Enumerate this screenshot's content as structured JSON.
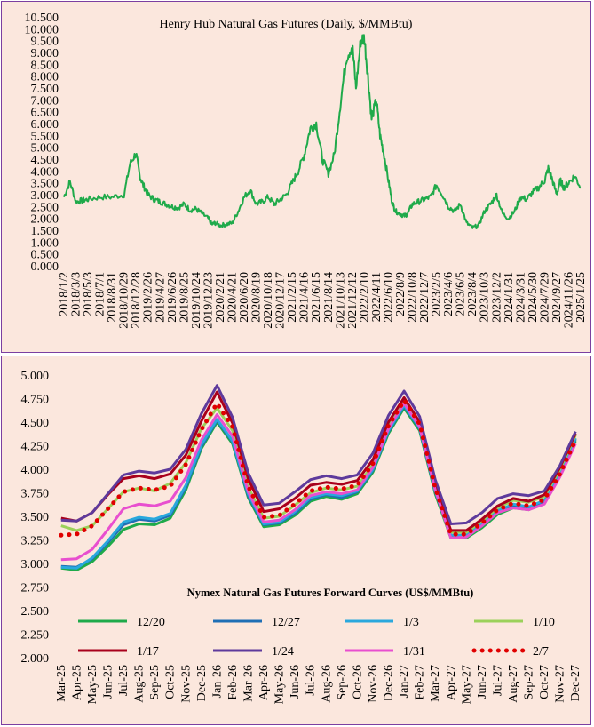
{
  "chart_data": [
    {
      "type": "line",
      "title": "Henry Hub Natural Gas Futures (Daily,  $/MMBtu)",
      "ylim": [
        0,
        10.5
      ],
      "y_ticks": [
        "0.000",
        "0.500",
        "1.000",
        "1.500",
        "2.000",
        "2.500",
        "3.000",
        "3.500",
        "4.000",
        "4.500",
        "5.000",
        "5.500",
        "6.000",
        "6.500",
        "7.000",
        "7.500",
        "8.000",
        "8.500",
        "9.000",
        "9.500",
        "10.000",
        "10.500"
      ],
      "x_tick_labels": [
        "2018/1/2",
        "2018/3/3",
        "2018/5/3",
        "2018/7/1",
        "2018/8/31",
        "2018/10/29",
        "2018/12/28",
        "2019/2/26",
        "2019/4/27",
        "2019/6/26",
        "2019/8/25",
        "2019/10/24",
        "2019/12/23",
        "2020/2/21",
        "2020/4/21",
        "2020/6/20",
        "2020/8/19",
        "2020/10/18",
        "2020/12/17",
        "2021/2/15",
        "2021/4/16",
        "2021/6/15",
        "2021/8/14",
        "2021/10/13",
        "2021/12/12",
        "2022/2/10",
        "2022/4/11",
        "2022/6/10",
        "2022/8/9",
        "2022/10/8",
        "2022/12/7",
        "2023/2/5",
        "2023/4/6",
        "2023/6/5",
        "2023/8/4",
        "2023/10/3",
        "2023/12/2",
        "2024/1/31",
        "2024/3/31",
        "2024/5/30",
        "2024/7/29",
        "2024/9/27",
        "2024/11/26",
        "2025/1/25"
      ],
      "series": [
        {
          "color": "#1faa4a",
          "x": [
            0,
            0.5,
            1,
            1.5,
            2,
            3,
            4,
            5,
            5.5,
            6,
            6.3,
            6.6,
            7,
            7.5,
            8,
            8.5,
            9,
            9.5,
            10,
            10.5,
            11,
            11.5,
            12,
            12.3,
            12.6,
            13,
            13.5,
            14,
            14.5,
            15,
            15.5,
            16,
            16.5,
            17,
            17.5,
            18,
            18.5,
            19,
            19.5,
            20,
            20.5,
            21,
            21.5,
            22,
            22.5,
            23,
            23.5,
            24,
            24.3,
            24.7,
            25,
            25.3,
            25.6,
            26,
            26.3,
            26.6,
            27,
            27.3,
            27.6,
            28,
            28.3,
            28.6,
            29,
            29.5,
            30,
            30.5,
            31,
            31.5,
            32,
            32.5,
            33,
            33.5,
            34,
            34.5,
            35,
            35.5,
            36,
            36.5,
            37,
            37.5,
            38,
            38.5,
            39,
            39.5,
            40,
            40.3,
            40.6,
            41,
            41.3,
            41.6,
            42,
            42.5,
            43
          ],
          "y": [
            2.9,
            3.55,
            2.7,
            2.75,
            2.8,
            2.9,
            2.9,
            3.0,
            4.3,
            4.75,
            3.8,
            3.4,
            3.0,
            2.8,
            2.7,
            2.6,
            2.5,
            2.45,
            2.6,
            2.35,
            2.4,
            2.2,
            2.0,
            1.75,
            1.8,
            1.7,
            1.75,
            1.8,
            2.3,
            2.9,
            3.2,
            2.6,
            2.7,
            2.9,
            2.6,
            2.8,
            3.0,
            3.5,
            4.0,
            4.7,
            5.8,
            6.0,
            4.5,
            3.9,
            4.7,
            6.8,
            8.8,
            9.3,
            7.5,
            9.5,
            9.6,
            8.0,
            6.2,
            7.0,
            5.5,
            4.8,
            3.6,
            2.7,
            2.3,
            2.2,
            2.1,
            2.2,
            2.6,
            2.7,
            2.8,
            2.9,
            3.4,
            3.0,
            2.5,
            2.3,
            2.6,
            1.8,
            1.6,
            1.7,
            2.3,
            2.6,
            3.0,
            2.2,
            2.0,
            2.3,
            2.9,
            2.8,
            3.1,
            3.3,
            3.6,
            4.1,
            3.7,
            3.0,
            3.6,
            3.3,
            3.5,
            3.8,
            3.3
          ]
        }
      ]
    },
    {
      "type": "line",
      "title": "Nymex  Natural Gas Futures Forward  Curves (US$/MMBtu)",
      "ylim": [
        2.0,
        5.0
      ],
      "y_ticks": [
        "2.000",
        "2.250",
        "2.500",
        "2.750",
        "3.000",
        "3.250",
        "3.500",
        "3.750",
        "4.000",
        "4.250",
        "4.500",
        "4.750",
        "5.000"
      ],
      "categories": [
        "Mar-25",
        "Apr-25",
        "May-25",
        "Jun-25",
        "Jul-25",
        "Aug-25",
        "Sep-25",
        "Oct-25",
        "Nov-25",
        "Dec-25",
        "Jan-26",
        "Feb-26",
        "Mar-26",
        "Apr-26",
        "May-26",
        "Jun-26",
        "Jul-26",
        "Aug-26",
        "Sep-26",
        "Oct-26",
        "Nov-26",
        "Dec-26",
        "Jan-27",
        "Feb-27",
        "Mar-27",
        "Apr-27",
        "May-27",
        "Jun-27",
        "Jul-27",
        "Aug-27",
        "Sep-27",
        "Oct-27",
        "Nov-27",
        "Dec-27"
      ],
      "series": [
        {
          "name": "12/20",
          "color": "#1faa4a",
          "values": [
            2.95,
            2.93,
            3.02,
            3.18,
            3.36,
            3.42,
            3.41,
            3.48,
            3.78,
            4.22,
            4.5,
            4.27,
            3.7,
            3.39,
            3.41,
            3.51,
            3.66,
            3.71,
            3.68,
            3.74,
            3.97,
            4.38,
            4.65,
            4.41,
            3.74,
            3.27,
            3.27,
            3.38,
            3.52,
            3.59,
            3.57,
            3.64,
            3.93,
            4.3
          ]
        },
        {
          "name": "12/27",
          "color": "#1f6fb5",
          "values": [
            2.97,
            2.96,
            3.05,
            3.22,
            3.41,
            3.47,
            3.45,
            3.51,
            3.81,
            4.24,
            4.52,
            4.29,
            3.72,
            3.41,
            3.43,
            3.53,
            3.68,
            3.73,
            3.7,
            3.76,
            3.99,
            4.4,
            4.67,
            4.43,
            3.76,
            3.29,
            3.29,
            3.4,
            3.54,
            3.61,
            3.59,
            3.66,
            3.95,
            4.32
          ]
        },
        {
          "name": "1/3",
          "color": "#2aa8dd",
          "values": [
            2.96,
            2.95,
            3.06,
            3.24,
            3.44,
            3.49,
            3.47,
            3.53,
            3.83,
            4.26,
            4.53,
            4.3,
            3.74,
            3.42,
            3.44,
            3.55,
            3.7,
            3.74,
            3.72,
            3.77,
            4.0,
            4.41,
            4.68,
            4.44,
            3.77,
            3.3,
            3.3,
            3.42,
            3.56,
            3.63,
            3.6,
            3.67,
            3.96,
            4.33
          ]
        },
        {
          "name": "1/10",
          "color": "#9bd15a",
          "values": [
            3.4,
            3.35,
            3.4,
            3.58,
            3.76,
            3.8,
            3.77,
            3.85,
            4.07,
            4.43,
            4.65,
            4.41,
            3.81,
            3.48,
            3.5,
            3.62,
            3.75,
            3.8,
            3.78,
            3.82,
            4.05,
            4.45,
            4.72,
            4.47,
            3.81,
            3.33,
            3.33,
            3.45,
            3.59,
            3.67,
            3.65,
            3.71,
            4.0,
            4.36
          ]
        },
        {
          "name": "1/17",
          "color": "#a8001c",
          "values": [
            3.48,
            3.45,
            3.54,
            3.73,
            3.9,
            3.93,
            3.9,
            3.95,
            4.15,
            4.51,
            4.82,
            4.49,
            3.9,
            3.55,
            3.58,
            3.69,
            3.83,
            3.86,
            3.84,
            3.88,
            4.1,
            4.5,
            4.76,
            4.5,
            3.83,
            3.35,
            3.35,
            3.47,
            3.61,
            3.69,
            3.66,
            3.73,
            4.02,
            4.38
          ]
        },
        {
          "name": "1/24",
          "color": "#5e3a9c",
          "values": [
            3.46,
            3.45,
            3.54,
            3.74,
            3.94,
            3.98,
            3.96,
            4.0,
            4.21,
            4.59,
            4.89,
            4.55,
            3.96,
            3.62,
            3.64,
            3.76,
            3.89,
            3.93,
            3.9,
            3.94,
            4.17,
            4.57,
            4.83,
            4.56,
            3.89,
            3.42,
            3.43,
            3.54,
            3.69,
            3.74,
            3.72,
            3.77,
            4.04,
            4.4
          ]
        },
        {
          "name": "1/31",
          "color": "#e84fcf",
          "values": [
            3.04,
            3.05,
            3.15,
            3.36,
            3.58,
            3.63,
            3.61,
            3.66,
            3.91,
            4.31,
            4.58,
            4.35,
            3.76,
            3.44,
            3.46,
            3.57,
            3.72,
            3.76,
            3.74,
            3.78,
            4.02,
            4.43,
            4.7,
            4.45,
            3.78,
            3.27,
            3.28,
            3.4,
            3.54,
            3.59,
            3.57,
            3.63,
            3.92,
            4.27
          ]
        },
        {
          "name": "2/7",
          "color": "#e00000",
          "values": [
            3.3,
            3.31,
            3.4,
            3.58,
            3.76,
            3.8,
            3.78,
            3.82,
            4.05,
            4.42,
            4.7,
            4.45,
            3.82,
            3.49,
            3.51,
            3.63,
            3.77,
            3.81,
            3.79,
            3.83,
            4.06,
            4.46,
            4.73,
            4.48,
            3.8,
            3.31,
            3.31,
            3.43,
            3.57,
            3.64,
            3.61,
            3.68,
            3.95,
            4.31
          ]
        }
      ]
    }
  ]
}
